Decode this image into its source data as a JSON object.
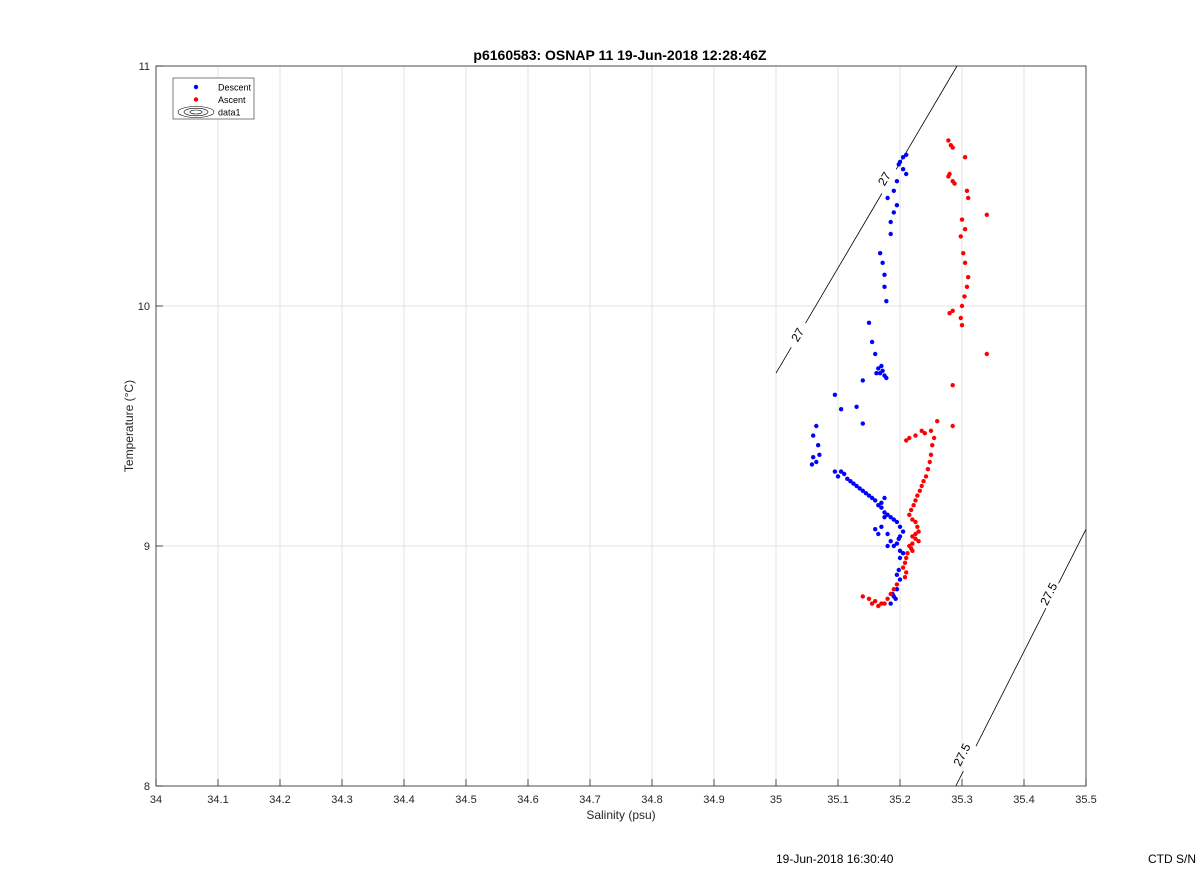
{
  "chart_data": {
    "type": "scatter",
    "title": "p6160583: OSNAP 11 19-Jun-2018 12:28:46Z",
    "xlabel": "Salinity (psu)",
    "ylabel": "Temperature (°C)",
    "xlim": [
      34,
      35.5
    ],
    "ylim": [
      8,
      11
    ],
    "xticks": [
      "34",
      "34.1",
      "34.2",
      "34.3",
      "34.4",
      "34.5",
      "34.6",
      "34.7",
      "34.8",
      "34.9",
      "35",
      "35.1",
      "35.2",
      "35.3",
      "35.4",
      "35.5"
    ],
    "yticks": [
      "8",
      "9",
      "10",
      "11"
    ],
    "grid": true,
    "legend_position": "top-left",
    "legend": [
      {
        "label": "Descent",
        "kind": "marker",
        "color": "#0000ff"
      },
      {
        "label": "Ascent",
        "kind": "marker",
        "color": "#ff0000"
      },
      {
        "label": "data1",
        "kind": "contour",
        "color": "#000000"
      }
    ],
    "contours": [
      {
        "level": "27",
        "points": [
          [
            35.0,
            9.72
          ],
          [
            35.292,
            11.0
          ]
        ],
        "labels": [
          {
            "text": "27",
            "x": 35.035,
            "y": 9.88
          },
          {
            "text": "27",
            "x": 35.175,
            "y": 10.53
          }
        ]
      },
      {
        "level": "27.5",
        "points": [
          [
            35.29,
            8.0
          ],
          [
            35.5,
            9.07
          ]
        ],
        "labels": [
          {
            "text": "27.5",
            "x": 35.3,
            "y": 8.13
          },
          {
            "text": "27.5",
            "x": 35.44,
            "y": 8.8
          }
        ]
      }
    ],
    "series": [
      {
        "name": "Descent",
        "color": "#0000ff",
        "points": [
          [
            35.205,
            10.62
          ],
          [
            35.21,
            10.63
          ],
          [
            35.2,
            10.6
          ],
          [
            35.205,
            10.57
          ],
          [
            35.21,
            10.55
          ],
          [
            35.198,
            10.59
          ],
          [
            35.195,
            10.52
          ],
          [
            35.19,
            10.48
          ],
          [
            35.18,
            10.45
          ],
          [
            35.195,
            10.42
          ],
          [
            35.19,
            10.39
          ],
          [
            35.185,
            10.35
          ],
          [
            35.185,
            10.3
          ],
          [
            35.168,
            10.22
          ],
          [
            35.172,
            10.18
          ],
          [
            35.175,
            10.13
          ],
          [
            35.175,
            10.08
          ],
          [
            35.178,
            10.02
          ],
          [
            35.15,
            9.93
          ],
          [
            35.155,
            9.85
          ],
          [
            35.16,
            9.8
          ],
          [
            35.165,
            9.74
          ],
          [
            35.168,
            9.72
          ],
          [
            35.172,
            9.73
          ],
          [
            35.175,
            9.71
          ],
          [
            35.178,
            9.7
          ],
          [
            35.162,
            9.72
          ],
          [
            35.17,
            9.75
          ],
          [
            35.14,
            9.69
          ],
          [
            35.095,
            9.63
          ],
          [
            35.105,
            9.57
          ],
          [
            35.13,
            9.58
          ],
          [
            35.14,
            9.51
          ],
          [
            35.065,
            9.5
          ],
          [
            35.06,
            9.46
          ],
          [
            35.068,
            9.42
          ],
          [
            35.07,
            9.38
          ],
          [
            35.065,
            9.35
          ],
          [
            35.06,
            9.37
          ],
          [
            35.058,
            9.34
          ],
          [
            35.095,
            9.31
          ],
          [
            35.1,
            9.29
          ],
          [
            35.105,
            9.31
          ],
          [
            35.11,
            9.3
          ],
          [
            35.115,
            9.28
          ],
          [
            35.12,
            9.27
          ],
          [
            35.125,
            9.26
          ],
          [
            35.13,
            9.25
          ],
          [
            35.135,
            9.24
          ],
          [
            35.14,
            9.23
          ],
          [
            35.145,
            9.22
          ],
          [
            35.15,
            9.21
          ],
          [
            35.155,
            9.2
          ],
          [
            35.16,
            9.19
          ],
          [
            35.165,
            9.17
          ],
          [
            35.17,
            9.16
          ],
          [
            35.175,
            9.14
          ],
          [
            35.18,
            9.13
          ],
          [
            35.185,
            9.12
          ],
          [
            35.19,
            9.11
          ],
          [
            35.195,
            9.1
          ],
          [
            35.2,
            9.08
          ],
          [
            35.205,
            9.06
          ],
          [
            35.2,
            9.04
          ],
          [
            35.198,
            9.03
          ],
          [
            35.195,
            9.01
          ],
          [
            35.19,
            9.0
          ],
          [
            35.185,
            9.02
          ],
          [
            35.18,
            9.0
          ],
          [
            35.2,
            8.98
          ],
          [
            35.205,
            8.97
          ],
          [
            35.2,
            8.95
          ],
          [
            35.198,
            8.9
          ],
          [
            35.195,
            8.88
          ],
          [
            35.2,
            8.86
          ],
          [
            35.195,
            8.82
          ],
          [
            35.19,
            8.79
          ],
          [
            35.193,
            8.78
          ],
          [
            35.185,
            8.76
          ],
          [
            35.188,
            8.8
          ],
          [
            35.16,
            9.07
          ],
          [
            35.165,
            9.05
          ],
          [
            35.17,
            9.08
          ],
          [
            35.175,
            9.12
          ],
          [
            35.18,
            9.05
          ],
          [
            35.17,
            9.18
          ],
          [
            35.175,
            9.2
          ]
        ]
      },
      {
        "name": "Ascent",
        "color": "#ff0000",
        "points": [
          [
            35.278,
            10.69
          ],
          [
            35.282,
            10.67
          ],
          [
            35.285,
            10.66
          ],
          [
            35.305,
            10.62
          ],
          [
            35.28,
            10.55
          ],
          [
            35.285,
            10.52
          ],
          [
            35.288,
            10.51
          ],
          [
            35.278,
            10.54
          ],
          [
            35.308,
            10.48
          ],
          [
            35.31,
            10.45
          ],
          [
            35.34,
            10.38
          ],
          [
            35.3,
            10.36
          ],
          [
            35.305,
            10.32
          ],
          [
            35.298,
            10.29
          ],
          [
            35.302,
            10.22
          ],
          [
            35.305,
            10.18
          ],
          [
            35.31,
            10.12
          ],
          [
            35.308,
            10.08
          ],
          [
            35.304,
            10.04
          ],
          [
            35.3,
            10.0
          ],
          [
            35.285,
            9.98
          ],
          [
            35.28,
            9.97
          ],
          [
            35.298,
            9.95
          ],
          [
            35.3,
            9.92
          ],
          [
            35.34,
            9.8
          ],
          [
            35.285,
            9.67
          ],
          [
            35.285,
            9.5
          ],
          [
            35.26,
            9.52
          ],
          [
            35.25,
            9.48
          ],
          [
            35.24,
            9.47
          ],
          [
            35.235,
            9.48
          ],
          [
            35.225,
            9.46
          ],
          [
            35.215,
            9.45
          ],
          [
            35.21,
            9.44
          ],
          [
            35.255,
            9.45
          ],
          [
            35.252,
            9.42
          ],
          [
            35.25,
            9.38
          ],
          [
            35.248,
            9.35
          ],
          [
            35.245,
            9.32
          ],
          [
            35.242,
            9.29
          ],
          [
            35.238,
            9.27
          ],
          [
            35.235,
            9.25
          ],
          [
            35.232,
            9.23
          ],
          [
            35.228,
            9.21
          ],
          [
            35.225,
            9.19
          ],
          [
            35.222,
            9.17
          ],
          [
            35.218,
            9.15
          ],
          [
            35.215,
            9.13
          ],
          [
            35.22,
            9.11
          ],
          [
            35.225,
            9.1
          ],
          [
            35.228,
            9.08
          ],
          [
            35.23,
            9.06
          ],
          [
            35.225,
            9.05
          ],
          [
            35.22,
            9.04
          ],
          [
            35.225,
            9.03
          ],
          [
            35.23,
            9.02
          ],
          [
            35.22,
            9.01
          ],
          [
            35.215,
            9.0
          ],
          [
            35.218,
            8.99
          ],
          [
            35.22,
            8.98
          ],
          [
            35.212,
            8.97
          ],
          [
            35.21,
            8.95
          ],
          [
            35.208,
            8.93
          ],
          [
            35.205,
            8.91
          ],
          [
            35.21,
            8.89
          ],
          [
            35.208,
            8.87
          ],
          [
            35.195,
            8.84
          ],
          [
            35.19,
            8.82
          ],
          [
            35.185,
            8.8
          ],
          [
            35.18,
            8.78
          ],
          [
            35.175,
            8.76
          ],
          [
            35.17,
            8.76
          ],
          [
            35.16,
            8.77
          ],
          [
            35.15,
            8.78
          ],
          [
            35.14,
            8.79
          ],
          [
            35.165,
            8.75
          ],
          [
            35.155,
            8.76
          ]
        ]
      }
    ]
  },
  "footer": {
    "timestamp": "19-Jun-2018 16:30:40",
    "ctd_label": "CTD S/N"
  }
}
